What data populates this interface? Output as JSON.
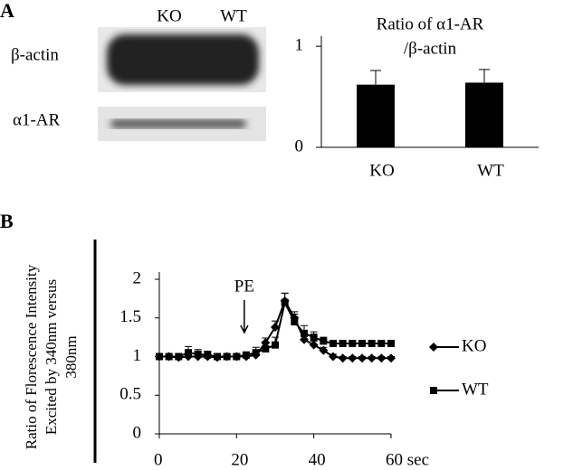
{
  "panels": [
    "A",
    "B"
  ],
  "blot": {
    "columns": [
      "KO",
      "WT"
    ],
    "rows": [
      "β-actin",
      "α1-AR"
    ]
  },
  "chart_data": [
    {
      "type": "bar",
      "title": [
        "Ratio of α1-AR",
        "/β-actin"
      ],
      "categories": [
        "KO",
        "WT"
      ],
      "values": [
        0.62,
        0.64
      ],
      "errors": [
        0.14,
        0.13
      ],
      "color": "#000000",
      "ylim": [
        0,
        1.1
      ],
      "yticks": [
        0,
        1
      ]
    },
    {
      "type": "line",
      "ylabel": [
        "Ratio of Florescence Intensity",
        "Excited by 340nm versus",
        "380nm"
      ],
      "x": [
        0,
        2.5,
        5,
        7.5,
        10,
        12.5,
        15,
        17.5,
        20,
        22.5,
        25,
        27.5,
        30,
        32.5,
        35,
        37.5,
        40,
        42.5,
        45,
        47.5,
        50,
        52.5,
        55,
        57.5,
        60
      ],
      "series": [
        {
          "name": "KO",
          "color": "#000000",
          "marker": "diamond",
          "values": [
            1,
            1,
            0.99,
            1,
            1,
            1,
            0.99,
            1,
            1,
            1,
            1.02,
            1.18,
            1.38,
            1.72,
            1.5,
            1.22,
            1.15,
            1.08,
            1,
            0.98,
            0.98,
            0.98,
            0.98,
            0.98,
            0.98
          ],
          "errors": [
            0.02,
            0.02,
            0.02,
            0.03,
            0.03,
            0.03,
            0.02,
            0.02,
            0.02,
            0.03,
            0.05,
            0.06,
            0.08,
            0.1,
            0.08,
            0.06,
            0.05,
            0.04,
            0.03,
            0.02,
            0.02,
            0.02,
            0.02,
            0.02,
            0.02
          ]
        },
        {
          "name": "WT",
          "color": "#000000",
          "marker": "square",
          "values": [
            1,
            1,
            1,
            1.05,
            1.03,
            1.02,
            1,
            1,
            1,
            1.02,
            1.05,
            1.1,
            1.15,
            1.7,
            1.45,
            1.3,
            1.25,
            1.2,
            1.17,
            1.17,
            1.17,
            1.17,
            1.17,
            1.17,
            1.17
          ],
          "errors": [
            0.03,
            0.03,
            0.04,
            0.08,
            0.06,
            0.05,
            0.04,
            0.03,
            0.03,
            0.04,
            0.07,
            0.08,
            0.1,
            0.12,
            0.1,
            0.1,
            0.07,
            0.05,
            0.04,
            0.03,
            0.03,
            0.03,
            0.03,
            0.03,
            0.03
          ]
        }
      ],
      "annotation": "PE",
      "annotation_x": 22,
      "xlim": [
        0,
        60
      ],
      "xticks": [
        0,
        20,
        40,
        {
          "value": 60,
          "label": "60 sec"
        }
      ],
      "ylim": [
        0,
        2
      ],
      "yticks": [
        0,
        0.5,
        1,
        1.5,
        2
      ]
    }
  ]
}
